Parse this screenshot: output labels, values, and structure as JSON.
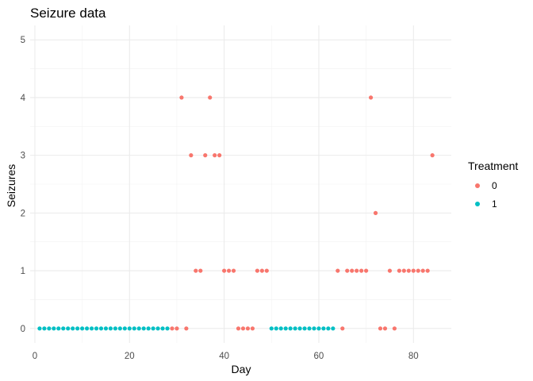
{
  "chart_data": {
    "type": "scatter",
    "title": "Seizure data",
    "xlabel": "Day",
    "ylabel": "Seizures",
    "xlim": [
      -1,
      88
    ],
    "ylim": [
      -0.25,
      5.25
    ],
    "x_ticks": [
      0,
      20,
      40,
      60,
      80
    ],
    "x_tick_labels": [
      "0",
      "20",
      "40",
      "60",
      "80"
    ],
    "y_ticks": [
      0,
      1,
      2,
      3,
      4,
      5
    ],
    "y_tick_labels": [
      "0",
      "1",
      "2",
      "3",
      "4",
      "5"
    ],
    "grid": true,
    "legend": {
      "title": "Treatment",
      "position": "right"
    },
    "series": [
      {
        "name": "0",
        "color": "#F8766D",
        "points": [
          [
            29,
            0
          ],
          [
            30,
            0
          ],
          [
            31,
            4
          ],
          [
            32,
            0
          ],
          [
            33,
            3
          ],
          [
            34,
            1
          ],
          [
            35,
            1
          ],
          [
            36,
            3
          ],
          [
            37,
            4
          ],
          [
            38,
            3
          ],
          [
            39,
            3
          ],
          [
            40,
            1
          ],
          [
            41,
            1
          ],
          [
            42,
            1
          ],
          [
            43,
            0
          ],
          [
            44,
            0
          ],
          [
            45,
            0
          ],
          [
            46,
            0
          ],
          [
            47,
            1
          ],
          [
            48,
            1
          ],
          [
            49,
            1
          ],
          [
            64,
            1
          ],
          [
            65,
            0
          ],
          [
            66,
            1
          ],
          [
            67,
            1
          ],
          [
            68,
            1
          ],
          [
            69,
            1
          ],
          [
            70,
            1
          ],
          [
            71,
            4
          ],
          [
            72,
            2
          ],
          [
            73,
            0
          ],
          [
            74,
            0
          ],
          [
            75,
            1
          ],
          [
            76,
            0
          ],
          [
            77,
            1
          ],
          [
            78,
            1
          ],
          [
            79,
            1
          ],
          [
            80,
            1
          ],
          [
            81,
            1
          ],
          [
            82,
            1
          ],
          [
            83,
            1
          ],
          [
            84,
            3
          ]
        ]
      },
      {
        "name": "1",
        "color": "#00BFC4",
        "points": [
          [
            1,
            0
          ],
          [
            2,
            0
          ],
          [
            3,
            0
          ],
          [
            4,
            0
          ],
          [
            5,
            0
          ],
          [
            6,
            0
          ],
          [
            7,
            0
          ],
          [
            8,
            0
          ],
          [
            9,
            0
          ],
          [
            10,
            0
          ],
          [
            11,
            0
          ],
          [
            12,
            0
          ],
          [
            13,
            0
          ],
          [
            14,
            0
          ],
          [
            15,
            0
          ],
          [
            16,
            0
          ],
          [
            17,
            0
          ],
          [
            18,
            0
          ],
          [
            19,
            0
          ],
          [
            20,
            0
          ],
          [
            21,
            0
          ],
          [
            22,
            0
          ],
          [
            23,
            0
          ],
          [
            24,
            0
          ],
          [
            25,
            0
          ],
          [
            26,
            0
          ],
          [
            27,
            0
          ],
          [
            28,
            0
          ],
          [
            50,
            0
          ],
          [
            51,
            0
          ],
          [
            52,
            0
          ],
          [
            53,
            0
          ],
          [
            54,
            0
          ],
          [
            55,
            0
          ],
          [
            56,
            0
          ],
          [
            57,
            0
          ],
          [
            58,
            0
          ],
          [
            59,
            0
          ],
          [
            60,
            0
          ],
          [
            61,
            0
          ],
          [
            62,
            0
          ],
          [
            63,
            0
          ]
        ]
      }
    ]
  }
}
